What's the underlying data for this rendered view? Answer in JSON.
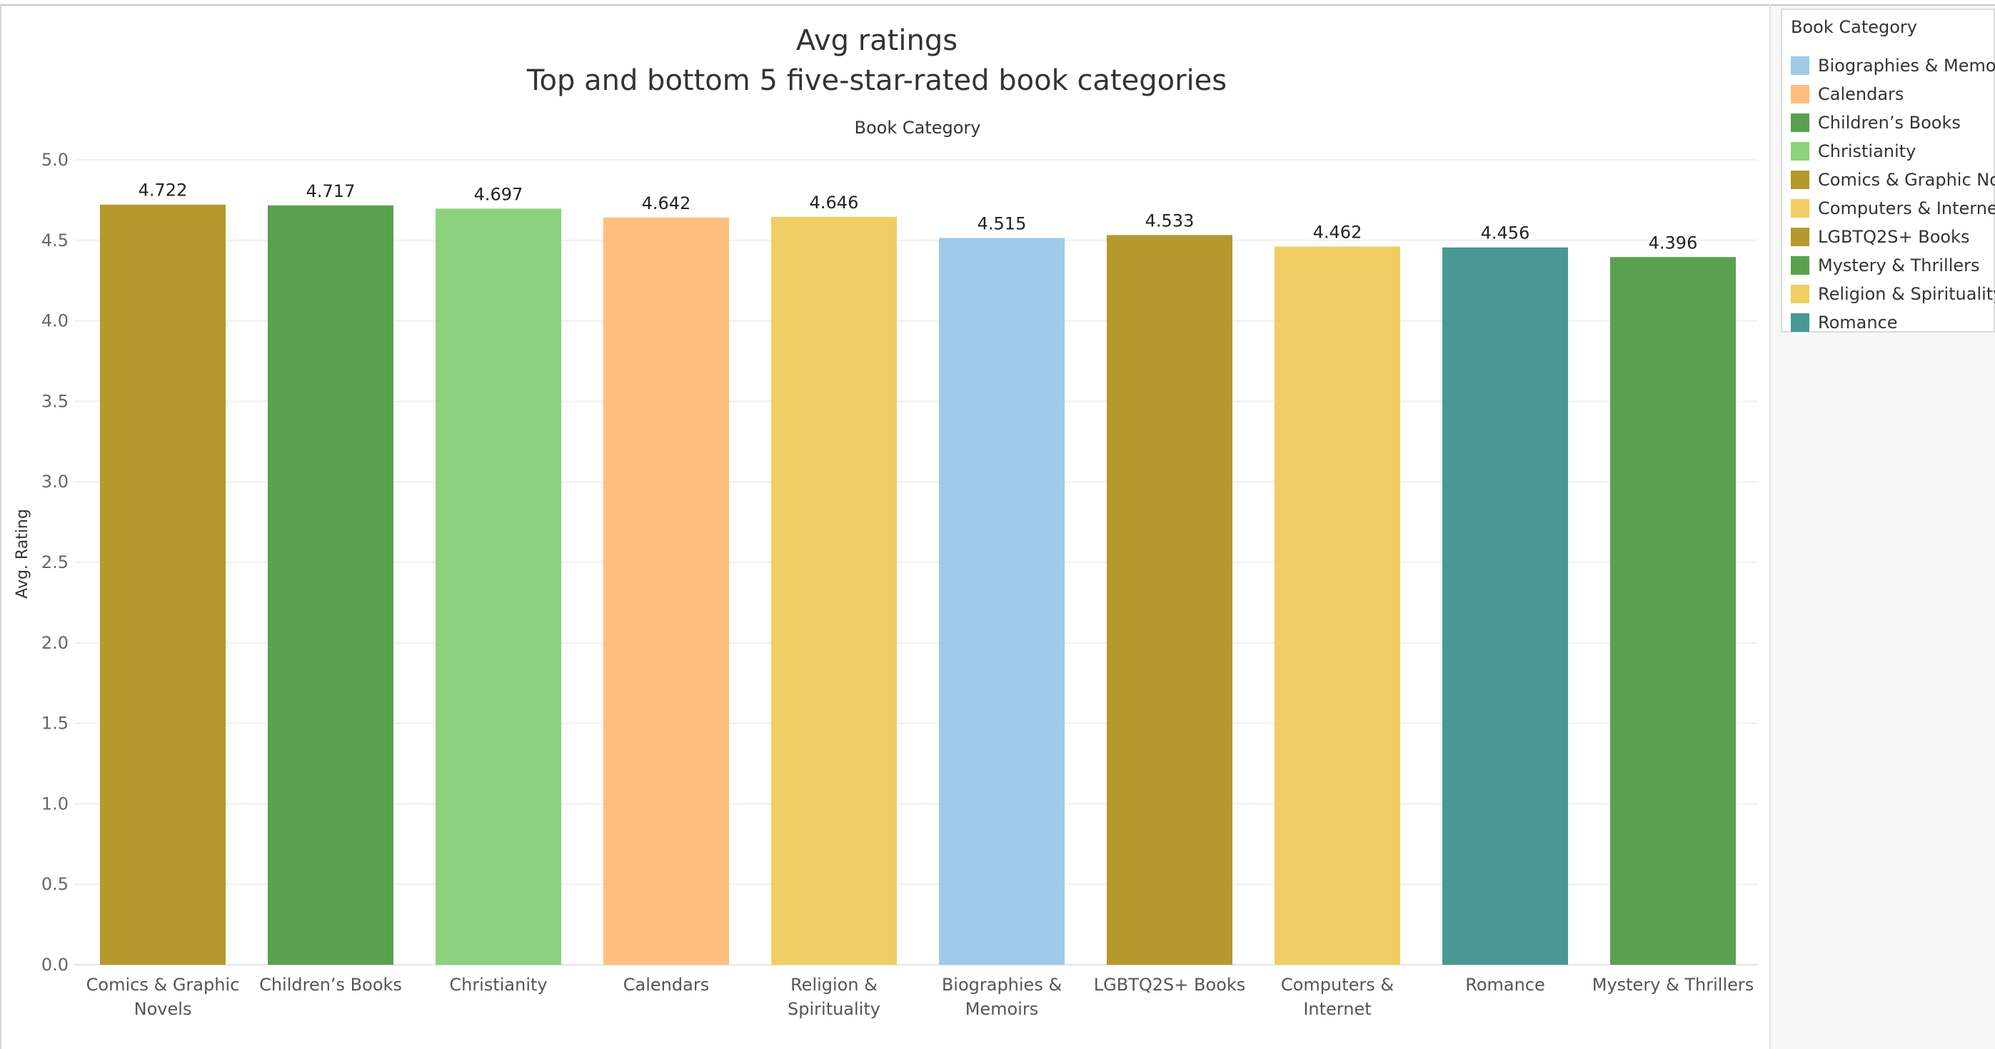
{
  "chart_data": {
    "type": "bar",
    "title": "Avg ratings",
    "subtitle": "Top and bottom 5 five-star-rated book categories",
    "x_header": "Book Category",
    "ylabel": "Avg. Rating",
    "ylim": [
      0,
      5
    ],
    "yticks": [
      "0.0",
      "0.5",
      "1.0",
      "1.5",
      "2.0",
      "2.5",
      "3.0",
      "3.5",
      "4.0",
      "4.5",
      "5.0"
    ],
    "grid": "horizontal",
    "legend_position": "right",
    "categories": [
      "Comics & Graphic Novels",
      "Children’s Books",
      "Christianity",
      "Calendars",
      "Religion & Spirituality",
      "Biographies & Memoirs",
      "LGBTQ2S+ Books",
      "Computers & Internet",
      "Romance",
      "Mystery & Thrillers"
    ],
    "category_label_lines": [
      [
        "Comics & Graphic",
        "Novels"
      ],
      [
        "Children’s Books"
      ],
      [
        "Christianity"
      ],
      [
        "Calendars"
      ],
      [
        "Religion &",
        "Spirituality"
      ],
      [
        "Biographies &",
        "Memoirs"
      ],
      [
        "LGBTQ2S+ Books"
      ],
      [
        "Computers &",
        "Internet"
      ],
      [
        "Romance"
      ],
      [
        "Mystery & Thrillers"
      ]
    ],
    "values": [
      4.722,
      4.717,
      4.697,
      4.642,
      4.646,
      4.515,
      4.533,
      4.462,
      4.456,
      4.396
    ],
    "data_labels": [
      "4.722",
      "4.717",
      "4.697",
      "4.642",
      "4.646",
      "4.515",
      "4.533",
      "4.462",
      "4.456",
      "4.396"
    ],
    "colors": [
      "#b5992d",
      "#59a14f",
      "#8cd17d",
      "#ffbe7d",
      "#f1ce63",
      "#a0cbe8",
      "#b5992d",
      "#f1ce63",
      "#499894",
      "#59a14f"
    ]
  },
  "legend": {
    "title": "Book Category",
    "items": [
      {
        "label": "Biographies & Memo..",
        "color": "#a0cbe8"
      },
      {
        "label": "Calendars",
        "color": "#ffbe7d"
      },
      {
        "label": "Children’s Books",
        "color": "#59a14f"
      },
      {
        "label": "Christianity",
        "color": "#8cd17d"
      },
      {
        "label": "Comics & Graphic No..",
        "color": "#b5992d"
      },
      {
        "label": "Computers & Internet",
        "color": "#f1ce63"
      },
      {
        "label": "LGBTQ2S+ Books",
        "color": "#b5992d"
      },
      {
        "label": "Mystery & Thrillers",
        "color": "#59a14f"
      },
      {
        "label": "Religion & Spirituality",
        "color": "#f1ce63"
      },
      {
        "label": "Romance",
        "color": "#499894"
      }
    ]
  }
}
